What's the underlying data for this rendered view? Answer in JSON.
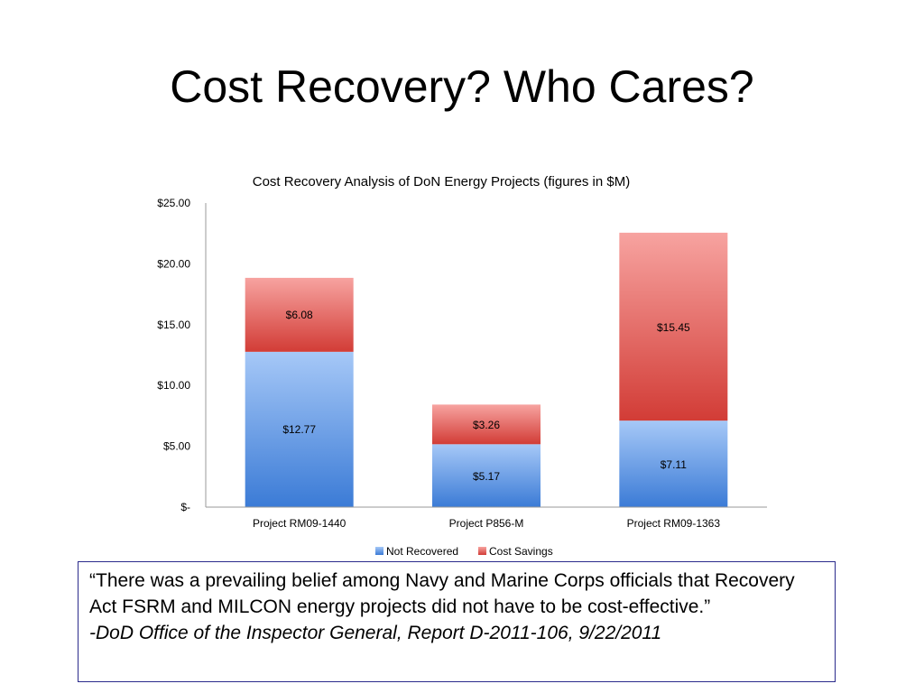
{
  "slide": {
    "title": "Cost Recovery? Who Cares?"
  },
  "quote": {
    "text": "“There was a prevailing belief among Navy and Marine Corps officials that Recovery Act FSRM and MILCON energy projects did not have to be cost-effective.”",
    "attribution": "-DoD Office of the Inspector General, Report D-2011-106, 9/22/2011"
  },
  "chart_data": {
    "type": "bar",
    "stacked": true,
    "title": "Cost Recovery Analysis of DoN Energy Projects (figures in $M)",
    "categories": [
      "Project RM09-1440",
      "Project P856-M",
      "Project RM09-1363"
    ],
    "series": [
      {
        "name": "Not Recovered",
        "values": [
          12.77,
          5.17,
          7.11
        ],
        "labels": [
          "$12.77",
          "$5.17",
          "$7.11"
        ],
        "color": "#4a86d8"
      },
      {
        "name": "Cost Savings",
        "values": [
          6.08,
          3.26,
          15.45
        ],
        "labels": [
          "$6.08",
          "$3.26",
          "$15.45"
        ],
        "color": "#d9403a"
      }
    ],
    "yticks": [
      0,
      5,
      10,
      15,
      20,
      25
    ],
    "ytick_labels": [
      "$-",
      "$5.00",
      "$10.00",
      "$15.00",
      "$20.00",
      "$25.00"
    ],
    "ylim": [
      0,
      25
    ],
    "grid": false,
    "legend": "bottom"
  }
}
